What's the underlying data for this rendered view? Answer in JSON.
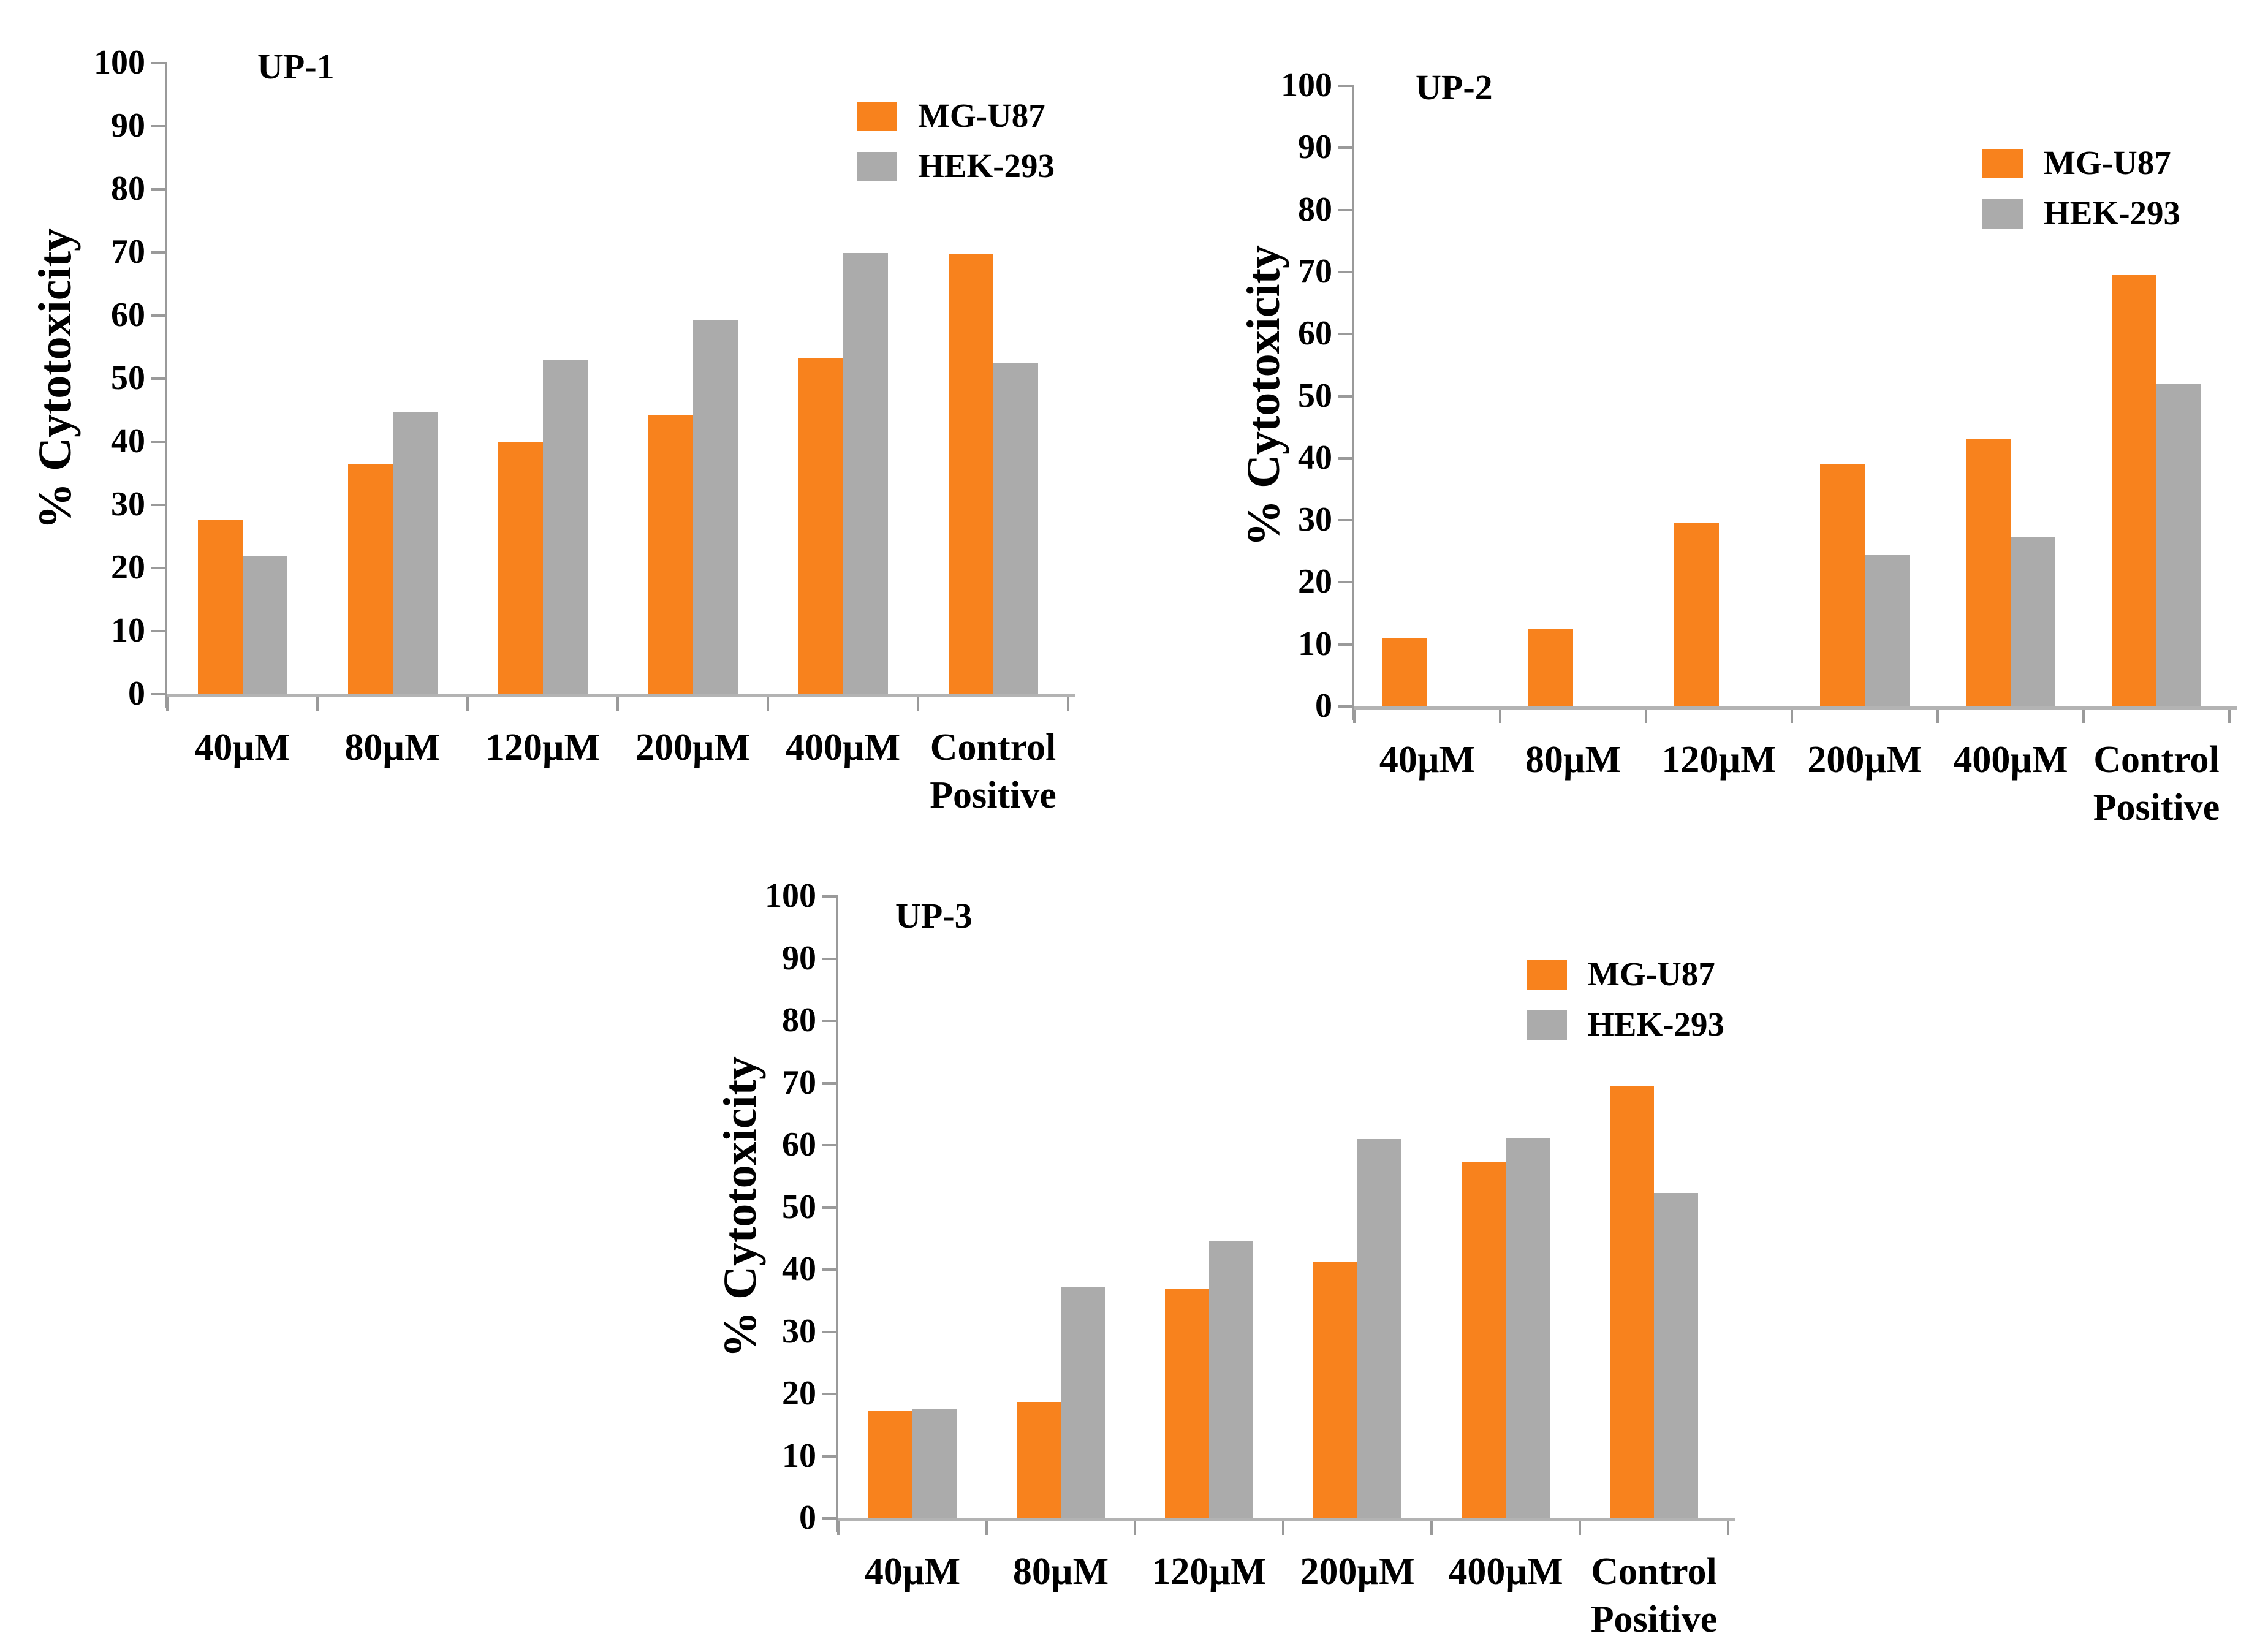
{
  "figure": {
    "background": "#FFFFFF",
    "description": "Three bar charts of % cytotoxicity (MG-U87 vs HEK-293) for compounds UP-1, UP-2, UP-3"
  },
  "colors": {
    "mg_u87": "#F8821D",
    "hek_293": "#ABABAB",
    "baseline": "#B3B3B3",
    "axis": "#9A9A9A",
    "text": "#000000"
  },
  "legend": {
    "items": [
      {
        "label": "MG-U87",
        "series_key": "mg_u87"
      },
      {
        "label": "HEK-293",
        "series_key": "hek_293"
      }
    ]
  },
  "y_axis": {
    "label": "% Cytotoxicity",
    "min": 0,
    "max": 100,
    "step": 10,
    "ticks": [
      "0",
      "10",
      "20",
      "30",
      "40",
      "50",
      "60",
      "70",
      "80",
      "90",
      "100"
    ]
  },
  "chart_data": [
    {
      "type": "bar",
      "title": "UP-1",
      "ylabel": "% Cytotoxicity",
      "ylim": [
        0,
        100
      ],
      "grid": false,
      "legend_position": "upper-right",
      "categories": [
        "40µM",
        "80µM",
        "120µM",
        "200µM",
        "400µM",
        "Control Positive"
      ],
      "series": [
        {
          "name": "MG-U87",
          "color_key": "mg_u87",
          "values": [
            27.7,
            36.4,
            40.0,
            44.2,
            53.2,
            69.7
          ]
        },
        {
          "name": "HEK-293",
          "color_key": "hek_293",
          "values": [
            21.8,
            44.8,
            53.0,
            59.2,
            69.9,
            52.4
          ]
        }
      ]
    },
    {
      "type": "bar",
      "title": "UP-2",
      "ylabel": "% Cytotoxicity",
      "ylim": [
        0,
        100
      ],
      "grid": false,
      "legend_position": "upper-right",
      "categories": [
        "40µM",
        "80µM",
        "120µM",
        "200µM",
        "400µM",
        "Control Positive"
      ],
      "series": [
        {
          "name": "MG-U87",
          "color_key": "mg_u87",
          "values": [
            11.0,
            12.4,
            29.5,
            39.0,
            43.0,
            69.5
          ]
        },
        {
          "name": "HEK-293",
          "color_key": "hek_293",
          "values": [
            0,
            0,
            0,
            24.4,
            27.3,
            52.0
          ]
        }
      ]
    },
    {
      "type": "bar",
      "title": "UP-3",
      "ylabel": "% Cytotoxicity",
      "ylim": [
        0,
        100
      ],
      "grid": false,
      "legend_position": "upper-right",
      "categories": [
        "40µM",
        "80µM",
        "120µM",
        "200µM",
        "400µM",
        "Control Positive"
      ],
      "series": [
        {
          "name": "MG-U87",
          "color_key": "mg_u87",
          "values": [
            17.2,
            18.7,
            36.8,
            41.2,
            57.3,
            69.6
          ]
        },
        {
          "name": "HEK-293",
          "color_key": "hek_293",
          "values": [
            17.5,
            37.2,
            44.5,
            61.0,
            61.2,
            52.3
          ]
        }
      ]
    }
  ]
}
